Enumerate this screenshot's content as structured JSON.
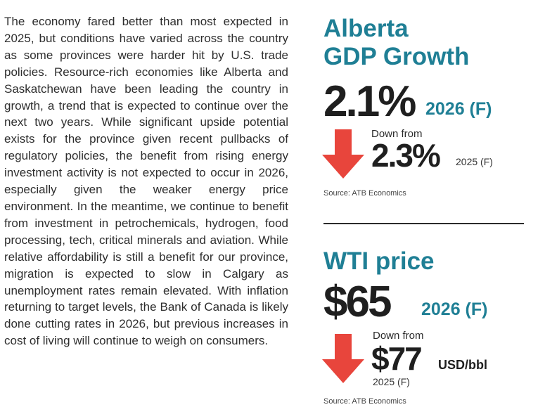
{
  "article": {
    "paragraph": "The economy fared better than most expected in 2025, but conditions have varied across the country as some provinces were harder hit by U.S. trade policies. Resource-rich economies like Alberta and Saskatchewan have been leading the country in growth, a trend that is expected to continue over the next two years. While significant upside potential exists for the province given recent pullbacks of regulatory policies, the benefit from rising energy investment activity is not expected to occur in 2026, especially given the weaker energy price environment. In the meantime, we continue to benefit from investment in petrochemicals, hydrogen, food processing, tech, critical minerals and aviation. While relative affordability is still a benefit for our province, migration is expected to slow in Calgary as unemployment rates remain elevated. With inflation returning to target levels, the Bank of Canada is likely done cutting rates in 2026, but previous increases in cost of living will continue to weigh on consumers."
  },
  "gdp": {
    "title_line1": "Alberta",
    "title_line2": "GDP Growth",
    "value": "2.1%",
    "period": "2026 (F)",
    "down_from_label": "Down from",
    "previous_value": "2.3%",
    "previous_period": "2025 (F)",
    "source": "Source: ATB Economics"
  },
  "wti": {
    "title": "WTI price",
    "value": "$65",
    "period": "2026 (F)",
    "down_from_label": "Down from",
    "previous_value": "$77",
    "unit": "USD/bbl",
    "previous_period": "2025 (F)",
    "source": "Source: ATB Economics"
  },
  "colors": {
    "accent": "#1f7f95",
    "arrow": "#e8453c",
    "text": "#2b2b2b"
  }
}
